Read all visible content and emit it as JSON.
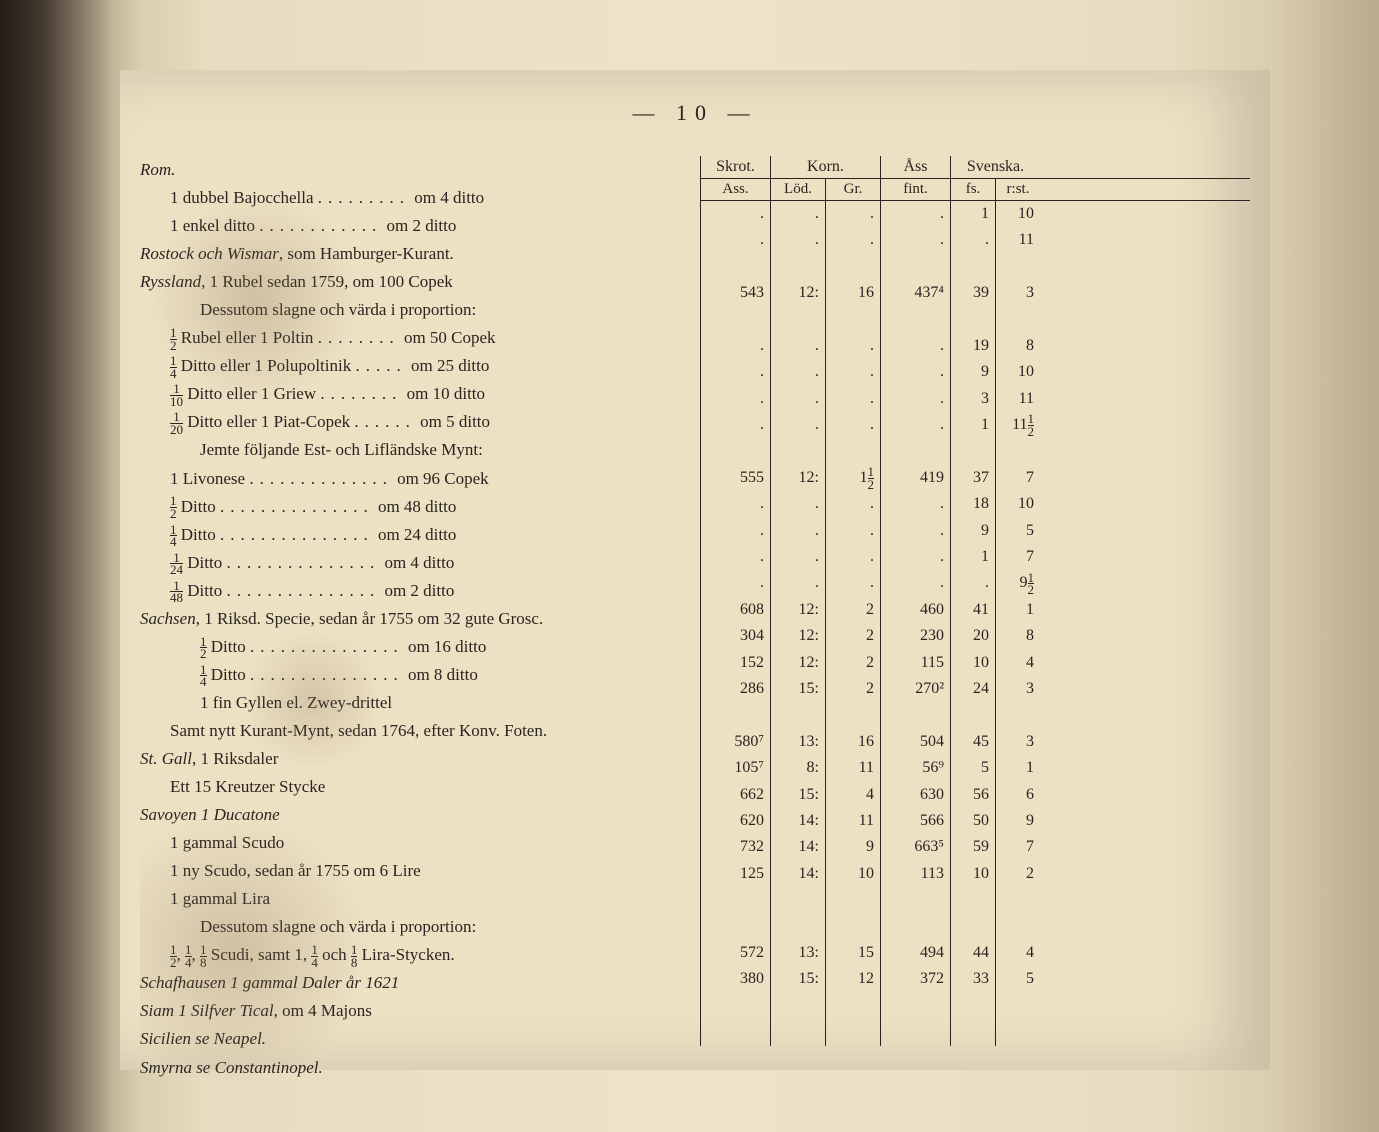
{
  "page": {
    "number": "— 10 —",
    "background_color": "#ede1c3",
    "text_color": "#2a2420",
    "font_family": "Times New Roman",
    "base_fontsize": 17
  },
  "headers": {
    "skrot": "Skrot.",
    "korn": "Korn.",
    "ass": "Åss",
    "svenska": "Svenska.",
    "sub_ass": "Ass.",
    "sub_lod": "Löd.",
    "sub_gr": "Gr.",
    "sub_fint": "fint.",
    "sub_fs": "fs.",
    "sub_rst": "r:st."
  },
  "rows": [
    {
      "text": "Rom.",
      "italic": true,
      "indent": 0,
      "data": {
        "skrot": "",
        "lod": "",
        "gr": "",
        "fint": "",
        "fs": "",
        "rst": ""
      }
    },
    {
      "text": "1 dubbel Bajocchella",
      "suffix": "om 4 ditto",
      "indent": 1,
      "data": {
        "skrot": ".",
        "lod": ".",
        "gr": ".",
        "fint": ".",
        "fs": "1",
        "rst": "10"
      }
    },
    {
      "text": "1 enkel ditto",
      "suffix": "om 2 ditto",
      "indent": 1,
      "data": {
        "skrot": ".",
        "lod": ".",
        "gr": ".",
        "fint": ".",
        "fs": ".",
        "rst": "11"
      }
    },
    {
      "text": "Rostock och Wismar, som Hamburger-Kurant.",
      "italic": true,
      "indent": 0,
      "data": null
    },
    {
      "text": "Ryssland, 1 Rubel sedan 1759, om 100 Copek",
      "italic": true,
      "indent": 0,
      "data": {
        "skrot": "543",
        "lod": "12:",
        "gr": "16",
        "fint": "437⁴",
        "fs": "39",
        "rst": "3"
      }
    },
    {
      "text": "Dessutom slagne och värda i proportion:",
      "indent": 2,
      "data": null
    },
    {
      "text": "½ Rubel eller 1 Poltin",
      "suffix": "om 50 Copek",
      "indent": 1,
      "data": {
        "skrot": ".",
        "lod": ".",
        "gr": ".",
        "fint": ".",
        "fs": "19",
        "rst": "8"
      }
    },
    {
      "text": "¼ Ditto eller 1 Polupoltinik",
      "suffix": "om 25 ditto",
      "indent": 1,
      "data": {
        "skrot": ".",
        "lod": ".",
        "gr": ".",
        "fint": ".",
        "fs": "9",
        "rst": "10"
      }
    },
    {
      "text": "1/10 Ditto eller 1 Griew",
      "suffix": "om 10 ditto",
      "indent": 1,
      "data": {
        "skrot": ".",
        "lod": ".",
        "gr": ".",
        "fint": ".",
        "fs": "3",
        "rst": "11"
      }
    },
    {
      "text": "1/20 Ditto eller 1 Piat-Copek",
      "suffix": "om 5 ditto",
      "indent": 1,
      "data": {
        "skrot": ".",
        "lod": ".",
        "gr": ".",
        "fint": ".",
        "fs": "1",
        "rst": "11½"
      }
    },
    {
      "text": "Jemte följande Est- och Lifländske Mynt:",
      "indent": 2,
      "data": null
    },
    {
      "text": "1 Livonese",
      "suffix": "om 96 Copek",
      "indent": 1,
      "data": {
        "skrot": "555",
        "lod": "12:",
        "gr": "1½",
        "fint": "419",
        "fs": "37",
        "rst": "7"
      }
    },
    {
      "text": "½ Ditto",
      "suffix": "om 48 ditto",
      "indent": 1,
      "data": {
        "skrot": ".",
        "lod": ".",
        "gr": ".",
        "fint": ".",
        "fs": "18",
        "rst": "10"
      }
    },
    {
      "text": "¼ Ditto",
      "suffix": "om 24 ditto",
      "indent": 1,
      "data": {
        "skrot": ".",
        "lod": ".",
        "gr": ".",
        "fint": ".",
        "fs": "9",
        "rst": "5"
      }
    },
    {
      "text": "1/24 Ditto",
      "suffix": "om 4 ditto",
      "indent": 1,
      "data": {
        "skrot": ".",
        "lod": ".",
        "gr": ".",
        "fint": ".",
        "fs": "1",
        "rst": "7"
      }
    },
    {
      "text": "1/48 Ditto",
      "suffix": "om 2 ditto",
      "indent": 1,
      "data": {
        "skrot": ".",
        "lod": ".",
        "gr": ".",
        "fint": ".",
        "fs": ".",
        "rst": "9½"
      }
    },
    {
      "text": "Sachsen, 1 Riksd. Specie, sedan år 1755 om 32 gute Grosc.",
      "italic": true,
      "indent": 0,
      "data": {
        "skrot": "608",
        "lod": "12:",
        "gr": "2",
        "fint": "460",
        "fs": "41",
        "rst": "1"
      }
    },
    {
      "text": "½ Ditto",
      "suffix": "om 16 ditto",
      "indent": 2,
      "data": {
        "skrot": "304",
        "lod": "12:",
        "gr": "2",
        "fint": "230",
        "fs": "20",
        "rst": "8"
      }
    },
    {
      "text": "¼ Ditto",
      "suffix": "om 8 ditto",
      "indent": 2,
      "data": {
        "skrot": "152",
        "lod": "12:",
        "gr": "2",
        "fint": "115",
        "fs": "10",
        "rst": "4"
      }
    },
    {
      "text": "1 fin Gyllen el. Zwey-drittel",
      "indent": 2,
      "data": {
        "skrot": "286",
        "lod": "15:",
        "gr": "2",
        "fint": "270²",
        "fs": "24",
        "rst": "3"
      }
    },
    {
      "text": "Samt nytt Kurant-Mynt, sedan 1764, efter Konv. Foten.",
      "indent": 1,
      "data": null
    },
    {
      "text": "St. Gall, 1 Riksdaler",
      "italic": true,
      "indent": 0,
      "data": {
        "skrot": "580⁷",
        "lod": "13:",
        "gr": "16",
        "fint": "504",
        "fs": "45",
        "rst": "3"
      }
    },
    {
      "text": "Ett 15 Kreutzer Stycke",
      "indent": 1,
      "data": {
        "skrot": "105⁷",
        "lod": "8:",
        "gr": "11",
        "fint": "56⁹",
        "fs": "5",
        "rst": "1"
      }
    },
    {
      "text": "Savoyen 1 Ducatone",
      "italic": true,
      "indent": 0,
      "data": {
        "skrot": "662",
        "lod": "15:",
        "gr": "4",
        "fint": "630",
        "fs": "56",
        "rst": "6"
      }
    },
    {
      "text": "1 gammal Scudo",
      "indent": 1,
      "data": {
        "skrot": "620",
        "lod": "14:",
        "gr": "11",
        "fint": "566",
        "fs": "50",
        "rst": "9"
      }
    },
    {
      "text": "1 ny Scudo, sedan år 1755 om 6 Lire",
      "indent": 1,
      "data": {
        "skrot": "732",
        "lod": "14:",
        "gr": "9",
        "fint": "663⁵",
        "fs": "59",
        "rst": "7"
      }
    },
    {
      "text": "1 gammal Lira",
      "indent": 1,
      "data": {
        "skrot": "125",
        "lod": "14:",
        "gr": "10",
        "fint": "113",
        "fs": "10",
        "rst": "2"
      }
    },
    {
      "text": "Dessutom slagne och värda i proportion:",
      "indent": 2,
      "data": null
    },
    {
      "text": "½, ¼, ⅛ Scudi, samt 1, ¼ och ⅛ Lira-Stycken.",
      "indent": 1,
      "data": null
    },
    {
      "text": "Schafhausen 1 gammal Daler år 1621",
      "italic": true,
      "indent": 0,
      "data": {
        "skrot": "572",
        "lod": "13:",
        "gr": "15",
        "fint": "494",
        "fs": "44",
        "rst": "4"
      }
    },
    {
      "text": "Siam 1 Silfver Tical, om 4 Majons",
      "italic": true,
      "indent": 0,
      "data": {
        "skrot": "380",
        "lod": "15:",
        "gr": "12",
        "fint": "372",
        "fs": "33",
        "rst": "5"
      }
    },
    {
      "text": "Sicilien se Neapel.",
      "italic": true,
      "indent": 0,
      "data": null
    },
    {
      "text": "Smyrna se Constantinopel.",
      "italic": true,
      "indent": 0,
      "data": null
    }
  ]
}
